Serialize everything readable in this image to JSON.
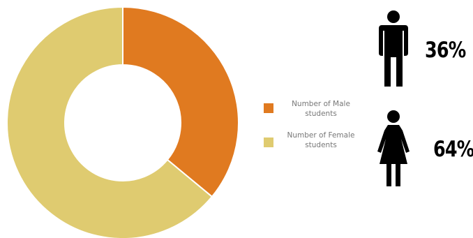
{
  "chart_data": {
    "type": "pie",
    "donut": true,
    "categories": [
      "Number of Male students",
      "Number of Female students"
    ],
    "values": [
      36,
      64
    ],
    "colors": [
      "#e07a20",
      "#dfcb70"
    ],
    "title": "",
    "legend_position": "right"
  },
  "legend": {
    "male_label": "Number of Male students",
    "female_label": "Number of Female students"
  },
  "icons": {
    "male": "male-person-icon",
    "female": "female-person-icon"
  },
  "percentages": {
    "male": "36%",
    "female": "64%"
  }
}
